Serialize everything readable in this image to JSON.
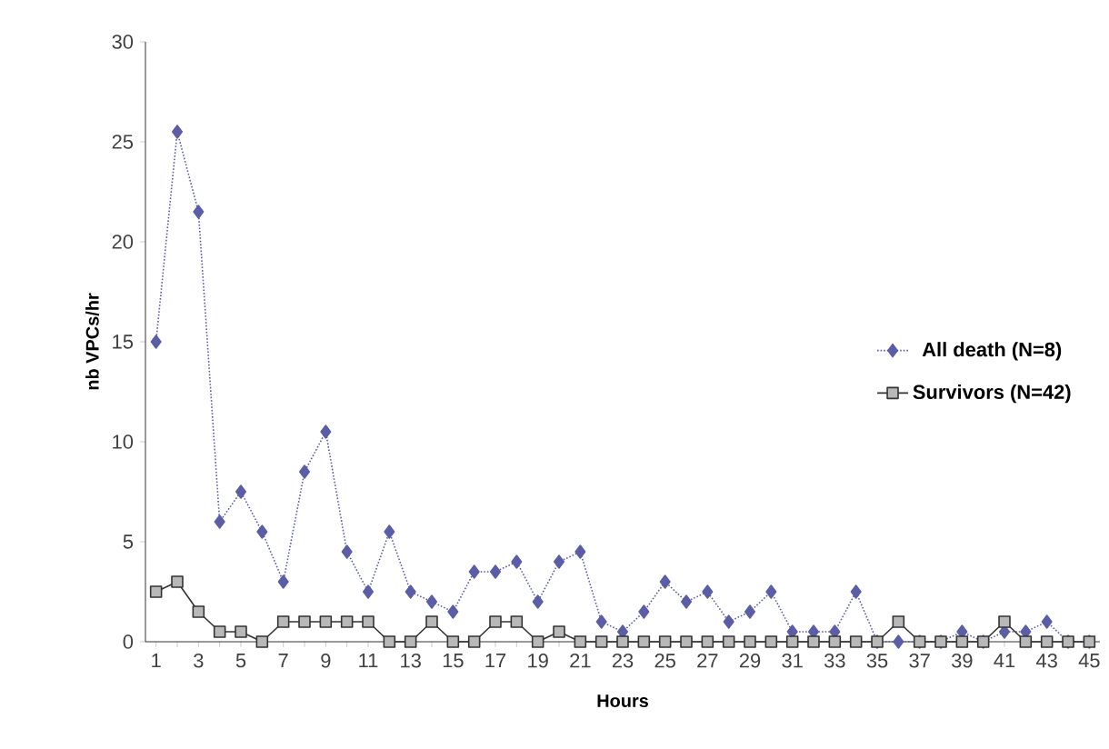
{
  "chart_data": {
    "type": "line",
    "xlabel": "Hours",
    "ylabel": "nb VPCs/hr",
    "categories": [
      "1",
      null,
      "3",
      null,
      "5",
      null,
      "7",
      null,
      "9",
      null,
      "11",
      null,
      "13",
      null,
      "15",
      null,
      "17",
      null,
      "19",
      null,
      "21",
      null,
      "23",
      null,
      "25",
      null,
      "27",
      null,
      "29",
      null,
      "31",
      null,
      "33",
      null,
      "35",
      null,
      "37",
      null,
      "39",
      null,
      "41",
      null,
      "43",
      null,
      "45"
    ],
    "series": [
      {
        "name": "All death (N=8)",
        "color": "#5b5ea6",
        "marker": "diamond",
        "line_style": "dotted",
        "values": [
          15,
          25.5,
          21.5,
          6,
          7.5,
          5.5,
          3,
          8.5,
          10.5,
          4.5,
          2.5,
          5.5,
          2.5,
          2,
          1.5,
          3.5,
          3.5,
          4,
          2,
          4,
          4.5,
          1,
          0.5,
          1.5,
          3,
          2,
          2.5,
          1,
          1.5,
          2.5,
          0.5,
          0.5,
          0.5,
          2.5,
          0,
          0,
          0,
          0,
          0.5,
          0,
          0.5,
          0.5,
          1,
          0,
          0
        ]
      },
      {
        "name": "Survivors (N=42)",
        "color": "#333333",
        "marker": "square",
        "line_style": "solid",
        "values": [
          2.5,
          3,
          1.5,
          0.5,
          0.5,
          0,
          1,
          1,
          1,
          1,
          1,
          0,
          0,
          1,
          0,
          0,
          1,
          1,
          0,
          0.5,
          0,
          0,
          0,
          0,
          0,
          0,
          0,
          0,
          0,
          0,
          0,
          0,
          0,
          0,
          0,
          1,
          0,
          0,
          0,
          0,
          1,
          0,
          0,
          0,
          0
        ]
      }
    ],
    "ylim": [
      0,
      30
    ],
    "yticks": [
      0,
      5,
      10,
      15,
      20,
      25,
      30
    ],
    "grid": false,
    "legend": "right"
  }
}
